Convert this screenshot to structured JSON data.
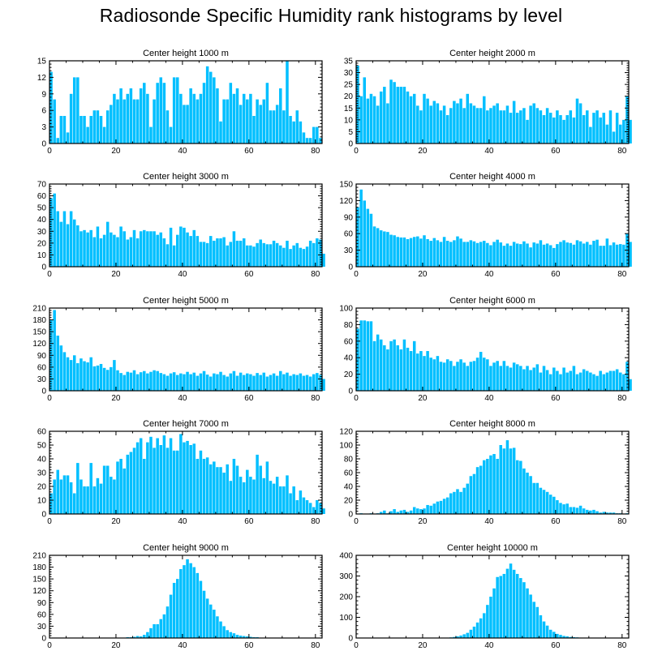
{
  "title": "Radiosonde Specific Humidity rank histograms by level",
  "bar_color": "#00bfff",
  "chart_data": [
    {
      "type": "bar",
      "title": "Center height 1000 m",
      "xlim": [
        0,
        82
      ],
      "xticks": [
        0,
        20,
        40,
        60,
        80
      ],
      "ylim": [
        0,
        15
      ],
      "yticks": [
        0,
        3,
        6,
        9,
        12,
        15
      ],
      "values": [
        13,
        8,
        1,
        5,
        5,
        2,
        9,
        12,
        12,
        5,
        5,
        3,
        5,
        6,
        6,
        5,
        3,
        6,
        7,
        9,
        8,
        10,
        8,
        9,
        10,
        8,
        8,
        10,
        11,
        9,
        3,
        8,
        11,
        12,
        11,
        6,
        3,
        12,
        12,
        9,
        7,
        7,
        10,
        9,
        8,
        9,
        11,
        14,
        13,
        12,
        10,
        4,
        8,
        8,
        11,
        9,
        10,
        7,
        9,
        8,
        9,
        5,
        8,
        7,
        8,
        11,
        6,
        6,
        7,
        10,
        6,
        15,
        5,
        4,
        6,
        4,
        2,
        1,
        1,
        3,
        3,
        1,
        0
      ]
    },
    {
      "type": "bar",
      "title": "Center height 2000 m",
      "xlim": [
        0,
        82
      ],
      "xticks": [
        0,
        20,
        40,
        60,
        80
      ],
      "ylim": [
        0,
        35
      ],
      "yticks": [
        0,
        5,
        10,
        15,
        20,
        25,
        30,
        35
      ],
      "values": [
        33,
        20,
        28,
        19,
        21,
        20,
        16,
        22,
        24,
        17,
        27,
        26,
        24,
        24,
        24,
        22,
        20,
        21,
        16,
        14,
        21,
        19,
        16,
        18,
        17,
        14,
        16,
        12,
        15,
        18,
        17,
        19,
        15,
        21,
        17,
        16,
        15,
        15,
        20,
        14,
        15,
        16,
        17,
        14,
        14,
        16,
        13,
        18,
        13,
        14,
        15,
        10,
        16,
        17,
        15,
        14,
        12,
        15,
        13,
        11,
        14,
        12,
        10,
        12,
        14,
        11,
        19,
        17,
        12,
        14,
        7,
        13,
        14,
        11,
        13,
        8,
        14,
        5,
        13,
        8,
        10,
        20,
        10
      ]
    },
    {
      "type": "bar",
      "title": "Center height 3000 m",
      "xlim": [
        0,
        82
      ],
      "xticks": [
        0,
        20,
        40,
        60,
        80
      ],
      "ylim": [
        0,
        70
      ],
      "yticks": [
        0,
        10,
        20,
        30,
        40,
        50,
        60,
        70
      ],
      "values": [
        58,
        62,
        47,
        38,
        47,
        36,
        47,
        40,
        35,
        30,
        31,
        29,
        31,
        25,
        34,
        24,
        27,
        38,
        29,
        27,
        25,
        34,
        30,
        23,
        25,
        31,
        24,
        30,
        31,
        30,
        30,
        30,
        27,
        29,
        24,
        19,
        33,
        18,
        27,
        34,
        33,
        29,
        26,
        31,
        26,
        21,
        21,
        20,
        26,
        22,
        24,
        24,
        25,
        18,
        21,
        30,
        22,
        22,
        24,
        18,
        18,
        17,
        20,
        23,
        20,
        19,
        19,
        22,
        20,
        18,
        16,
        22,
        15,
        18,
        20,
        16,
        15,
        17,
        22,
        20,
        24,
        23,
        11
      ]
    },
    {
      "type": "bar",
      "title": "Center height 4000 m",
      "xlim": [
        0,
        82
      ],
      "xticks": [
        0,
        20,
        40,
        60,
        80
      ],
      "ylim": [
        0,
        150
      ],
      "yticks": [
        0,
        30,
        60,
        90,
        120,
        150
      ],
      "values": [
        108,
        140,
        120,
        105,
        96,
        73,
        70,
        66,
        64,
        63,
        58,
        57,
        54,
        53,
        53,
        50,
        52,
        54,
        55,
        51,
        57,
        50,
        47,
        52,
        48,
        45,
        54,
        47,
        45,
        48,
        55,
        51,
        45,
        45,
        48,
        46,
        43,
        45,
        47,
        43,
        39,
        45,
        49,
        44,
        38,
        42,
        38,
        45,
        42,
        41,
        46,
        42,
        35,
        44,
        42,
        48,
        40,
        42,
        39,
        34,
        41,
        45,
        48,
        44,
        43,
        40,
        48,
        46,
        42,
        45,
        40,
        47,
        49,
        38,
        38,
        51,
        39,
        44,
        40,
        41,
        40,
        60,
        45
      ]
    },
    {
      "type": "bar",
      "title": "Center height 5000 m",
      "xlim": [
        0,
        82
      ],
      "xticks": [
        0,
        20,
        40,
        60,
        80
      ],
      "ylim": [
        0,
        210
      ],
      "yticks": [
        0,
        30,
        60,
        90,
        120,
        150,
        180,
        210
      ],
      "values": [
        180,
        205,
        140,
        115,
        98,
        85,
        78,
        90,
        70,
        82,
        75,
        72,
        85,
        62,
        64,
        68,
        58,
        53,
        60,
        78,
        52,
        45,
        40,
        48,
        46,
        52,
        42,
        47,
        50,
        44,
        48,
        52,
        50,
        45,
        42,
        38,
        44,
        47,
        40,
        44,
        42,
        48,
        42,
        46,
        38,
        44,
        50,
        41,
        36,
        44,
        42,
        48,
        40,
        36,
        44,
        50,
        38,
        46,
        40,
        44,
        42,
        38,
        45,
        40,
        46,
        36,
        40,
        44,
        38,
        50,
        42,
        46,
        38,
        42,
        40,
        44,
        38,
        40,
        36,
        42,
        45,
        40,
        30
      ]
    },
    {
      "type": "bar",
      "title": "Center height 6000 m",
      "xlim": [
        0,
        82
      ],
      "xticks": [
        0,
        20,
        40,
        60,
        80
      ],
      "ylim": [
        0,
        100
      ],
      "yticks": [
        0,
        20,
        40,
        60,
        80,
        100
      ],
      "values": [
        75,
        85,
        85,
        84,
        84,
        60,
        68,
        62,
        55,
        50,
        60,
        62,
        55,
        50,
        62,
        52,
        48,
        60,
        45,
        48,
        42,
        48,
        40,
        38,
        42,
        35,
        34,
        38,
        36,
        30,
        35,
        38,
        34,
        30,
        35,
        36,
        40,
        47,
        40,
        38,
        30,
        34,
        36,
        30,
        36,
        30,
        28,
        34,
        32,
        30,
        26,
        30,
        25,
        28,
        32,
        22,
        30,
        25,
        20,
        28,
        24,
        20,
        28,
        22,
        24,
        30,
        20,
        22,
        26,
        24,
        22,
        20,
        18,
        24,
        20,
        22,
        24,
        24,
        26,
        22,
        20,
        35,
        14
      ]
    },
    {
      "type": "bar",
      "title": "Center height 7000 m",
      "xlim": [
        0,
        82
      ],
      "xticks": [
        0,
        20,
        40,
        60,
        80
      ],
      "ylim": [
        0,
        60
      ],
      "yticks": [
        0,
        10,
        20,
        30,
        40,
        50,
        60
      ],
      "values": [
        15,
        25,
        32,
        25,
        28,
        28,
        23,
        15,
        37,
        25,
        20,
        20,
        37,
        20,
        26,
        22,
        35,
        35,
        27,
        25,
        38,
        40,
        33,
        43,
        45,
        48,
        52,
        55,
        40,
        52,
        56,
        48,
        55,
        50,
        57,
        48,
        55,
        46,
        46,
        58,
        52,
        53,
        50,
        51,
        40,
        46,
        40,
        41,
        36,
        38,
        34,
        34,
        30,
        36,
        24,
        40,
        35,
        27,
        23,
        32,
        27,
        25,
        43,
        35,
        26,
        38,
        24,
        22,
        27,
        20,
        20,
        28,
        15,
        20,
        10,
        17,
        12,
        10,
        8,
        5,
        10,
        8,
        4
      ]
    },
    {
      "type": "bar",
      "title": "Center height 8000 m",
      "xlim": [
        0,
        82
      ],
      "xticks": [
        0,
        20,
        40,
        60,
        80
      ],
      "ylim": [
        0,
        120
      ],
      "yticks": [
        0,
        20,
        40,
        60,
        80,
        100,
        120
      ],
      "values": [
        0,
        1,
        0,
        0,
        1,
        0,
        1,
        3,
        5,
        1,
        4,
        7,
        3,
        5,
        6,
        3,
        5,
        10,
        8,
        7,
        8,
        13,
        12,
        15,
        18,
        19,
        22,
        24,
        30,
        32,
        36,
        32,
        38,
        44,
        55,
        58,
        68,
        70,
        78,
        80,
        85,
        87,
        80,
        100,
        95,
        107,
        95,
        96,
        78,
        77,
        66,
        60,
        55,
        45,
        45,
        38,
        35,
        32,
        28,
        25,
        20,
        16,
        14,
        15,
        10,
        10,
        9,
        12,
        8,
        6,
        5,
        6,
        4,
        2,
        3,
        2,
        2,
        2,
        1,
        1,
        0,
        1,
        0
      ]
    },
    {
      "type": "bar",
      "title": "Center height 9000 m",
      "xlim": [
        0,
        82
      ],
      "xticks": [
        0,
        20,
        40,
        60,
        80
      ],
      "ylim": [
        0,
        210
      ],
      "yticks": [
        0,
        30,
        60,
        90,
        120,
        150,
        180,
        210
      ],
      "values": [
        0,
        0,
        0,
        0,
        0,
        0,
        0,
        0,
        0,
        0,
        0,
        0,
        0,
        0,
        0,
        0,
        0,
        0,
        0,
        0,
        0,
        1,
        1,
        2,
        2,
        3,
        5,
        4,
        8,
        15,
        25,
        35,
        35,
        48,
        60,
        80,
        110,
        140,
        150,
        175,
        185,
        200,
        190,
        180,
        165,
        145,
        120,
        100,
        85,
        72,
        55,
        42,
        30,
        20,
        15,
        12,
        8,
        6,
        5,
        4,
        3,
        2,
        2,
        1,
        1,
        1,
        1,
        0,
        0,
        1,
        0,
        0,
        1,
        0,
        0,
        0,
        0,
        0,
        0,
        0,
        0,
        0,
        0
      ]
    },
    {
      "type": "bar",
      "title": "Center height 10000 m",
      "xlim": [
        0,
        82
      ],
      "xticks": [
        0,
        20,
        40,
        60,
        80
      ],
      "ylim": [
        0,
        400
      ],
      "yticks": [
        0,
        100,
        200,
        300,
        400
      ],
      "values": [
        0,
        0,
        0,
        0,
        0,
        0,
        0,
        0,
        0,
        0,
        0,
        0,
        0,
        0,
        0,
        0,
        0,
        0,
        0,
        0,
        0,
        0,
        0,
        0,
        0,
        0,
        1,
        2,
        3,
        5,
        8,
        12,
        18,
        25,
        40,
        55,
        75,
        95,
        120,
        160,
        200,
        240,
        295,
        300,
        310,
        335,
        360,
        330,
        310,
        290,
        270,
        240,
        210,
        175,
        150,
        110,
        80,
        60,
        40,
        30,
        20,
        15,
        10,
        8,
        5,
        4,
        3,
        2,
        2,
        1,
        1,
        1,
        0,
        0,
        0,
        0,
        0,
        0,
        0,
        0,
        0,
        0,
        0
      ]
    }
  ]
}
